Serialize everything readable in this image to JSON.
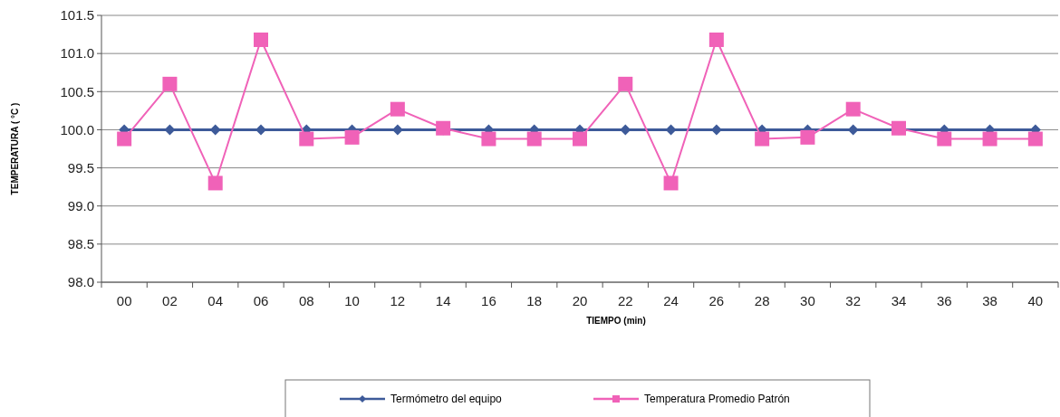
{
  "chart_data": {
    "type": "line",
    "xlabel": "TIEMPO (min)",
    "ylabel": "TEMPERATURA ( °C )",
    "categories": [
      "00",
      "02",
      "04",
      "06",
      "08",
      "10",
      "12",
      "14",
      "16",
      "18",
      "20",
      "22",
      "24",
      "26",
      "28",
      "30",
      "32",
      "34",
      "36",
      "38",
      "40"
    ],
    "series": [
      {
        "name": "Termómetro del equipo",
        "color": "#3d5a99",
        "marker": "diamond",
        "values": [
          100,
          100,
          100,
          100,
          100,
          100,
          100,
          100,
          100,
          100,
          100,
          100,
          100,
          100,
          100,
          100,
          100,
          100,
          100,
          100,
          100
        ]
      },
      {
        "name": "Temperatura Promedio Patrón",
        "color": "#f062b8",
        "marker": "square",
        "values": [
          99.88,
          100.6,
          99.3,
          101.18,
          99.88,
          99.9,
          100.27,
          100.02,
          99.88,
          99.88,
          99.88,
          100.6,
          99.3,
          101.18,
          99.88,
          99.9,
          100.27,
          100.02,
          99.88,
          99.88,
          99.88
        ]
      }
    ],
    "ylim": [
      98,
      101.5
    ],
    "yticks": [
      {
        "value": 98,
        "label": "98.0"
      },
      {
        "value": 98.5,
        "label": "98.5"
      },
      {
        "value": 99,
        "label": "99.0"
      },
      {
        "value": 99.5,
        "label": "99.5"
      },
      {
        "value": 100,
        "label": "100.0"
      },
      {
        "value": 100.5,
        "label": "100.5"
      },
      {
        "value": 101,
        "label": "101.0"
      },
      {
        "value": 101.5,
        "label": "101.5"
      }
    ],
    "grid": "y",
    "legend": "bottom"
  }
}
